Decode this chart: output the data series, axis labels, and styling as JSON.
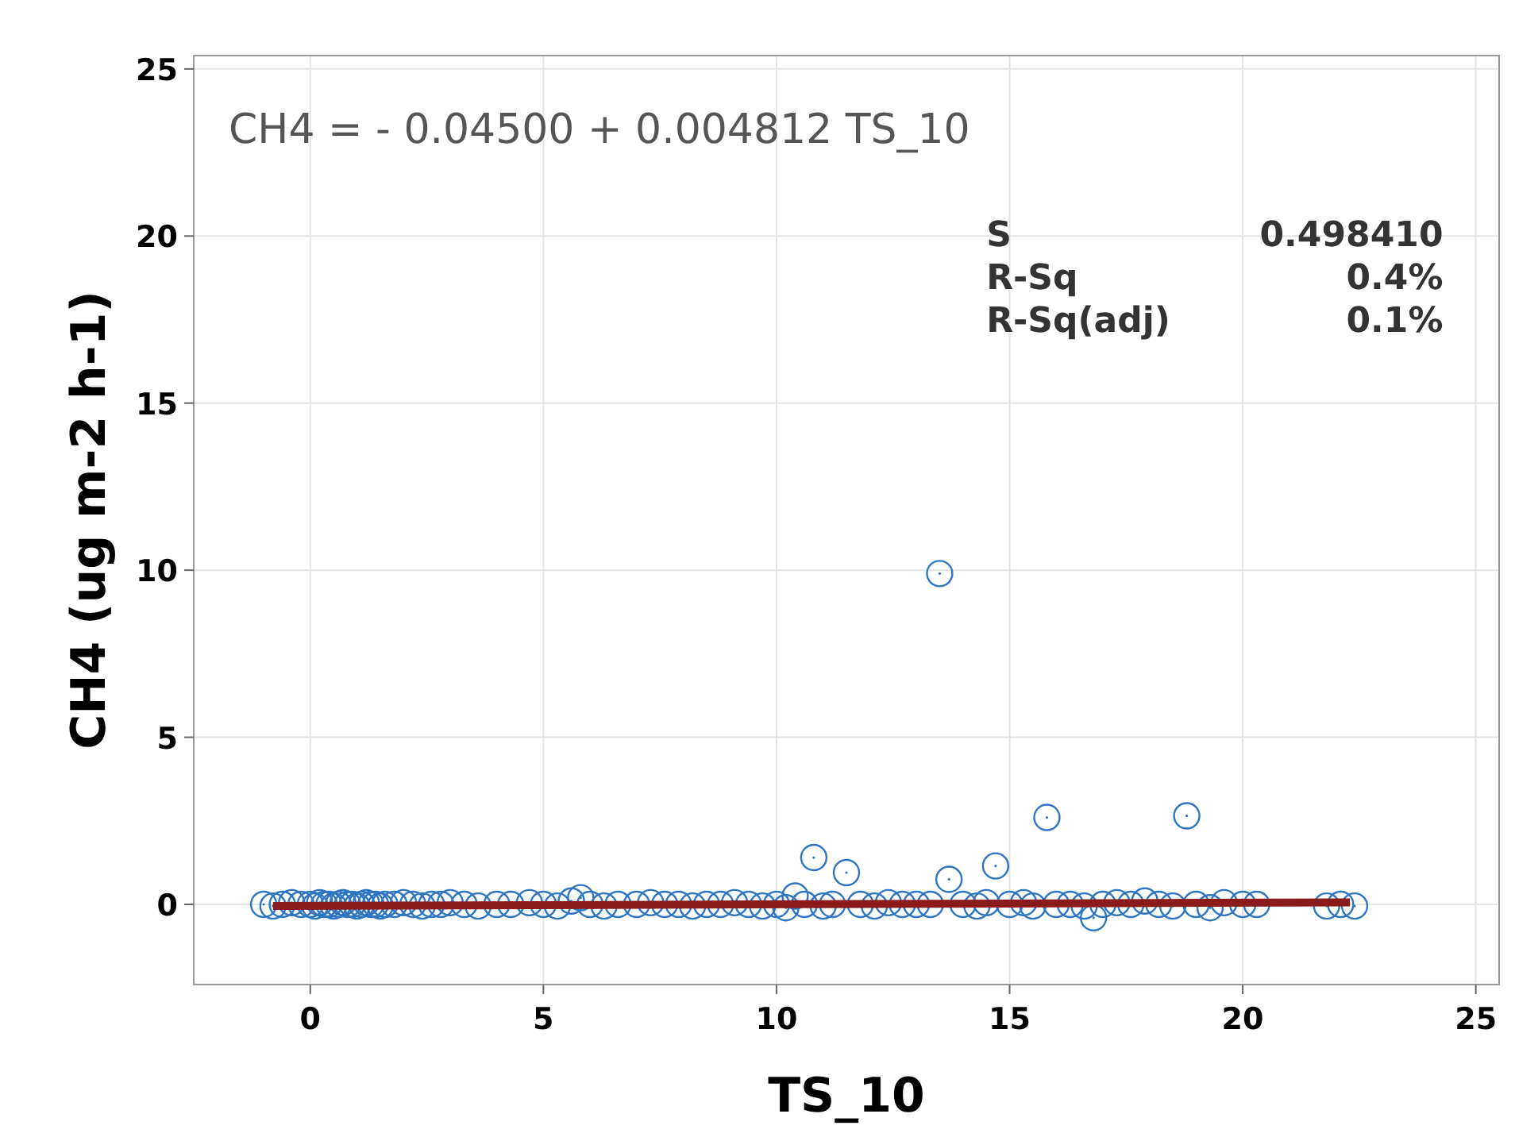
{
  "chart_data": {
    "type": "scatter",
    "xlabel": "TS_10",
    "ylabel": "CH4 (ug m-2 h-1)",
    "xlim": [
      -2.5,
      25.5
    ],
    "ylim": [
      -2.4,
      25.4
    ],
    "xticks": [
      0,
      5,
      10,
      15,
      20,
      25
    ],
    "yticks": [
      0,
      5,
      10,
      15,
      20,
      25
    ],
    "grid": true,
    "annotations": [
      "CH4 = - 0.04500 + 0.004812 TS_10",
      "S",
      "0.498410",
      "R-Sq",
      "0.4%",
      "R-Sq(adj)",
      "0.1%"
    ],
    "series": [
      {
        "marker": "circle",
        "color": "#2e75c2",
        "x": [
          -1.0,
          -0.8,
          -0.6,
          -0.4,
          -0.2,
          0,
          0.1,
          0.2,
          0.3,
          0.4,
          0.5,
          0.6,
          0.7,
          0.8,
          0.9,
          1.0,
          1.1,
          1.2,
          1.3,
          1.4,
          1.5,
          1.6,
          1.8,
          2.0,
          2.2,
          2.4,
          2.6,
          2.8,
          3.0,
          3.3,
          3.6,
          4.0,
          4.3,
          4.7,
          5.0,
          5.3,
          5.6,
          5.8,
          6.0,
          6.3,
          6.6,
          7.0,
          7.3,
          7.6,
          7.9,
          8.2,
          8.5,
          8.8,
          9.1,
          9.4,
          9.7,
          10.0,
          10.2,
          10.4,
          10.6,
          10.8,
          11.0,
          11.2,
          11.5,
          11.8,
          12.1,
          12.4,
          12.7,
          13.0,
          13.3,
          13.5,
          13.7,
          14.0,
          14.3,
          14.5,
          14.7,
          15.0,
          15.3,
          15.5,
          15.8,
          16.0,
          16.3,
          16.6,
          16.8,
          17.0,
          17.3,
          17.6,
          17.9,
          18.2,
          18.5,
          18.8,
          19.0,
          19.3,
          19.6,
          20.0,
          20.3,
          21.8,
          22.1,
          22.4
        ],
        "values": [
          0,
          -0.05,
          0,
          0.05,
          0,
          0,
          -0.05,
          0.05,
          0,
          0,
          -0.05,
          0,
          0.05,
          0,
          0,
          -0.05,
          0,
          0.05,
          0,
          0,
          -0.05,
          0,
          0,
          0.05,
          0,
          -0.05,
          0,
          0,
          0.05,
          0,
          -0.05,
          0,
          0,
          0.05,
          0,
          -0.05,
          0.1,
          0.2,
          0,
          -0.05,
          0,
          0,
          0.05,
          0,
          0,
          -0.05,
          0,
          0,
          0.05,
          0,
          -0.05,
          0,
          -0.1,
          0.25,
          0,
          1.4,
          -0.05,
          0,
          0.95,
          0,
          -0.05,
          0.05,
          0,
          0,
          0,
          9.9,
          0.75,
          0,
          -0.05,
          0.05,
          1.15,
          0,
          0.05,
          -0.05,
          2.6,
          0,
          0,
          -0.05,
          -0.4,
          0,
          0.05,
          0,
          0.1,
          0,
          -0.05,
          2.65,
          0,
          -0.1,
          0.05,
          0,
          0,
          -0.05,
          0,
          -0.05
        ]
      },
      {
        "type": "line",
        "color": "#8b1a1a",
        "x": [
          -0.8,
          22.3
        ],
        "values": [
          -0.05,
          0.06
        ]
      }
    ]
  }
}
